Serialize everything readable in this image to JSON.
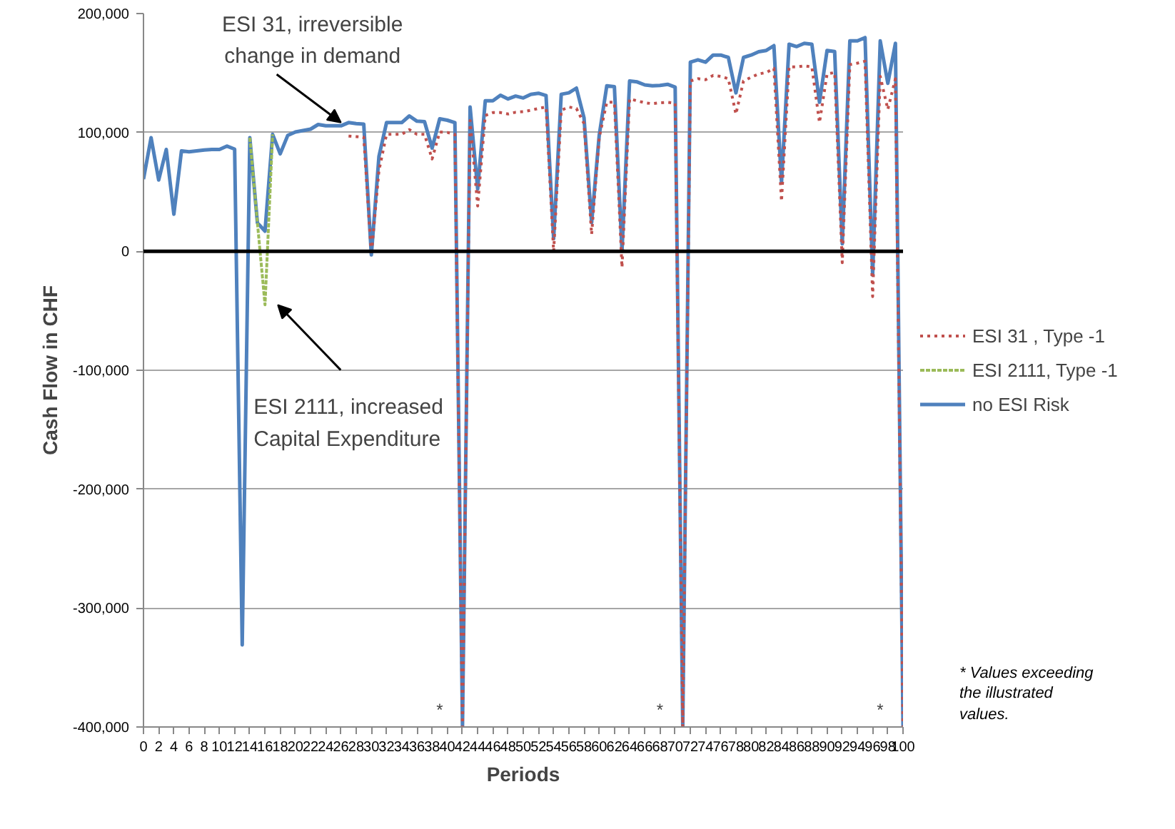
{
  "chart_data": {
    "type": "line",
    "xlabel": "Periods",
    "ylabel": "Cash Flow in CHF",
    "xlim": [
      0,
      100
    ],
    "ylim": [
      -400000,
      200000
    ],
    "xticks": [
      0,
      2,
      4,
      6,
      8,
      10,
      12,
      14,
      16,
      18,
      20,
      22,
      24,
      26,
      28,
      30,
      32,
      34,
      36,
      38,
      40,
      42,
      44,
      46,
      48,
      50,
      52,
      54,
      56,
      58,
      60,
      62,
      64,
      66,
      68,
      70,
      72,
      74,
      76,
      78,
      80,
      82,
      84,
      86,
      88,
      90,
      92,
      94,
      96,
      98,
      100
    ],
    "yticks": [
      {
        "value": -400000,
        "label": "-400,000"
      },
      {
        "value": -300000,
        "label": "-300,000"
      },
      {
        "value": -200000,
        "label": "-200,000"
      },
      {
        "value": -100000,
        "label": "-100,000"
      },
      {
        "value": 0,
        "label": "0"
      },
      {
        "value": 100000,
        "label": "100,000"
      },
      {
        "value": 200000,
        "label": "200,000"
      }
    ],
    "grid": "y",
    "legend": "right",
    "ref_lines": [
      {
        "axis": "y",
        "value": 0,
        "color": "#000000"
      }
    ],
    "series": [
      {
        "name": "ESI 31 , Type -1",
        "color": "#c0504d",
        "line_style": "dotted",
        "x": [
          27,
          28,
          29,
          30,
          31,
          32,
          33,
          34,
          35,
          36,
          37,
          38,
          39,
          40,
          41,
          42,
          43,
          44,
          45,
          46,
          47,
          48,
          49,
          50,
          51,
          52,
          53,
          54,
          55,
          56,
          57,
          58,
          59,
          60,
          61,
          62,
          63,
          64,
          65,
          66,
          67,
          68,
          69,
          70,
          71,
          72,
          73,
          74,
          75,
          76,
          77,
          78,
          79,
          80,
          81,
          82,
          83,
          84,
          85,
          86,
          87,
          88,
          89,
          90,
          91,
          92,
          93,
          94,
          95,
          96,
          97,
          98,
          99,
          100
        ],
        "values": [
          97000,
          96500,
          96000,
          -3000,
          67900,
          98400,
          98400,
          98400,
          102400,
          98400,
          98400,
          77700,
          100400,
          100000,
          98400,
          -400000,
          110000,
          38100,
          114300,
          116700,
          116700,
          115500,
          117000,
          117500,
          118700,
          120200,
          121400,
          0,
          118700,
          121400,
          120200,
          107500,
          14300,
          95600,
          125400,
          125400,
          -13500,
          128200,
          126600,
          125000,
          124200,
          125000,
          125400,
          124600,
          -400000,
          143300,
          145200,
          144400,
          148000,
          147200,
          145200,
          115500,
          143300,
          146400,
          149200,
          150400,
          153900,
          42100,
          155200,
          155200,
          156000,
          155200,
          108300,
          149200,
          150400,
          -9500,
          157100,
          158300,
          159900,
          -38000,
          147200,
          119400,
          145200,
          -400000
        ]
      },
      {
        "name": "ESI 2111, Type -1",
        "color": "#9bbb59",
        "line_style": "dashed",
        "x": [
          14,
          15,
          16,
          17
        ],
        "values": [
          95600,
          24000,
          -45000,
          98400
        ]
      },
      {
        "name": "no ESI Risk",
        "color": "#4f81bd",
        "line_style": "solid",
        "x": [
          0,
          1,
          2,
          3,
          4,
          5,
          6,
          7,
          8,
          9,
          10,
          11,
          12,
          13,
          14,
          15,
          16,
          17,
          18,
          19,
          20,
          21,
          22,
          23,
          24,
          25,
          26,
          27,
          28,
          29,
          30,
          31,
          32,
          33,
          34,
          35,
          36,
          37,
          38,
          39,
          40,
          41,
          42,
          43,
          44,
          45,
          46,
          47,
          48,
          49,
          50,
          51,
          52,
          53,
          54,
          55,
          56,
          57,
          58,
          59,
          60,
          61,
          62,
          63,
          64,
          65,
          66,
          67,
          68,
          69,
          70,
          71,
          72,
          73,
          74,
          75,
          76,
          77,
          78,
          79,
          80,
          81,
          82,
          83,
          84,
          85,
          86,
          87,
          88,
          89,
          90,
          91,
          92,
          93,
          94,
          95,
          96,
          97,
          98,
          99,
          100
        ],
        "values": [
          60700,
          95600,
          60000,
          85700,
          31300,
          84500,
          83700,
          84500,
          85300,
          85700,
          85700,
          88500,
          86000,
          -331000,
          95600,
          24000,
          17000,
          98400,
          82000,
          97600,
          100400,
          101600,
          102800,
          106700,
          105600,
          105600,
          105600,
          108300,
          107500,
          107000,
          -3000,
          79800,
          108300,
          108300,
          108300,
          113900,
          109500,
          109100,
          86900,
          111500,
          110300,
          108300,
          -400000,
          121400,
          52400,
          126600,
          126600,
          131300,
          128200,
          130600,
          129000,
          132100,
          133000,
          131000,
          10700,
          132100,
          133300,
          137300,
          112300,
          24200,
          97600,
          139300,
          138500,
          400,
          143300,
          142500,
          140000,
          139300,
          139500,
          140500,
          138100,
          -400000,
          159100,
          161100,
          159100,
          165100,
          165100,
          163100,
          133300,
          163100,
          165100,
          167900,
          169000,
          173000,
          58000,
          174200,
          172200,
          175000,
          174200,
          125400,
          169000,
          168000,
          6300,
          177000,
          177000,
          179800,
          -20000,
          177000,
          141300,
          175000,
          -400000
        ]
      }
    ],
    "annotations": [
      {
        "text": "ESI 31, irreversible change in demand",
        "x": 26,
        "y": 106000
      },
      {
        "text": "ESI 2111, increased Capital Expenditure",
        "x": 16,
        "y": -45000
      },
      {
        "text": "*",
        "x": 42,
        "y": -400000
      },
      {
        "text": "*",
        "x": 71,
        "y": -400000
      },
      {
        "text": "*",
        "x": 100,
        "y": -400000
      },
      "* Values exceeding the illustrated values."
    ]
  }
}
